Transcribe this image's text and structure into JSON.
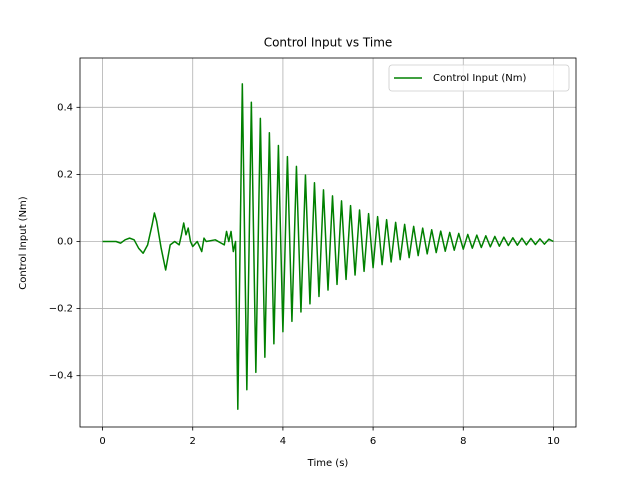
{
  "chart_data": {
    "type": "line",
    "title": "Control Input vs Time",
    "x_label": "Time (s)",
    "y_label": "Control Input (Nm)",
    "x": [
      0,
      0.1,
      0.2,
      0.3,
      0.4,
      0.5,
      0.6,
      0.7,
      0.8,
      0.9,
      1.0,
      1.1,
      1.15,
      1.2,
      1.3,
      1.4,
      1.5,
      1.6,
      1.7,
      1.75,
      1.8,
      1.85,
      1.9,
      1.95,
      2.0,
      2.1,
      2.2,
      2.25,
      2.3,
      2.5,
      2.7,
      2.75,
      2.8,
      2.85,
      2.9,
      2.95,
      3.0,
      3.1,
      3.2,
      3.3,
      3.4,
      3.5,
      3.6,
      3.7,
      3.8,
      3.9,
      4.0,
      4.1,
      4.2,
      4.3,
      4.4,
      4.5,
      4.6,
      4.7,
      4.8,
      4.9,
      5.0,
      5.1,
      5.2,
      5.3,
      5.4,
      5.5,
      5.6,
      5.7,
      5.8,
      5.9,
      6.0,
      6.1,
      6.2,
      6.3,
      6.4,
      6.5,
      6.6,
      6.7,
      6.8,
      6.9,
      7.0,
      7.1,
      7.2,
      7.3,
      7.4,
      7.5,
      7.6,
      7.7,
      7.8,
      7.9,
      8.0,
      8.1,
      8.2,
      8.3,
      8.4,
      8.5,
      8.6,
      8.7,
      8.8,
      8.9,
      9.0,
      9.1,
      9.2,
      9.3,
      9.4,
      9.5,
      9.6,
      9.7,
      9.8,
      9.9,
      10.0
    ],
    "series": [
      {
        "name": "Control Input (Nm)",
        "color": "#008000",
        "values": [
          0,
          0,
          0,
          0,
          -0.005,
          0.005,
          0.01,
          0.005,
          -0.02,
          -0.035,
          -0.01,
          0.05,
          0.085,
          0.06,
          -0.02,
          -0.085,
          -0.01,
          0,
          -0.01,
          0.02,
          0.055,
          0.02,
          0.04,
          0,
          -0.015,
          0,
          -0.03,
          0.01,
          0,
          0.005,
          -0.01,
          0.03,
          0,
          0.03,
          -0.03,
          0,
          -0.5,
          0.47,
          -0.442,
          0.415,
          -0.39,
          0.367,
          -0.345,
          0.324,
          -0.305,
          0.286,
          -0.269,
          0.253,
          -0.238,
          0.224,
          -0.21,
          0.198,
          -0.186,
          0.175,
          -0.164,
          0.154,
          -0.145,
          0.136,
          -0.128,
          0.121,
          -0.113,
          0.107,
          -0.1,
          0.094,
          -0.089,
          0.083,
          -0.078,
          0.074,
          -0.069,
          0.065,
          -0.061,
          0.057,
          -0.054,
          0.051,
          -0.048,
          0.045,
          -0.042,
          0.04,
          -0.037,
          0.035,
          -0.033,
          0.031,
          -0.029,
          0.027,
          -0.026,
          0.024,
          -0.023,
          0.021,
          -0.02,
          0.019,
          -0.018,
          0.017,
          -0.016,
          0.015,
          -0.014,
          0.013,
          -0.012,
          0.011,
          -0.011,
          0.01,
          -0.01,
          0.009,
          -0.009,
          0.008,
          -0.008,
          0.007,
          0
        ]
      }
    ],
    "xlim": [
      -0.5,
      10.5
    ],
    "xticks": [
      0,
      2,
      4,
      6,
      8,
      10
    ],
    "ylim": [
      -0.553,
      0.547
    ],
    "yticks": [
      {
        "value": -0.4,
        "label": "−0.4"
      },
      {
        "value": -0.2,
        "label": "−0.2"
      },
      {
        "value": 0,
        "label": "0.0"
      },
      0.2,
      0.4
    ],
    "grid": true,
    "legend": "upper right"
  }
}
